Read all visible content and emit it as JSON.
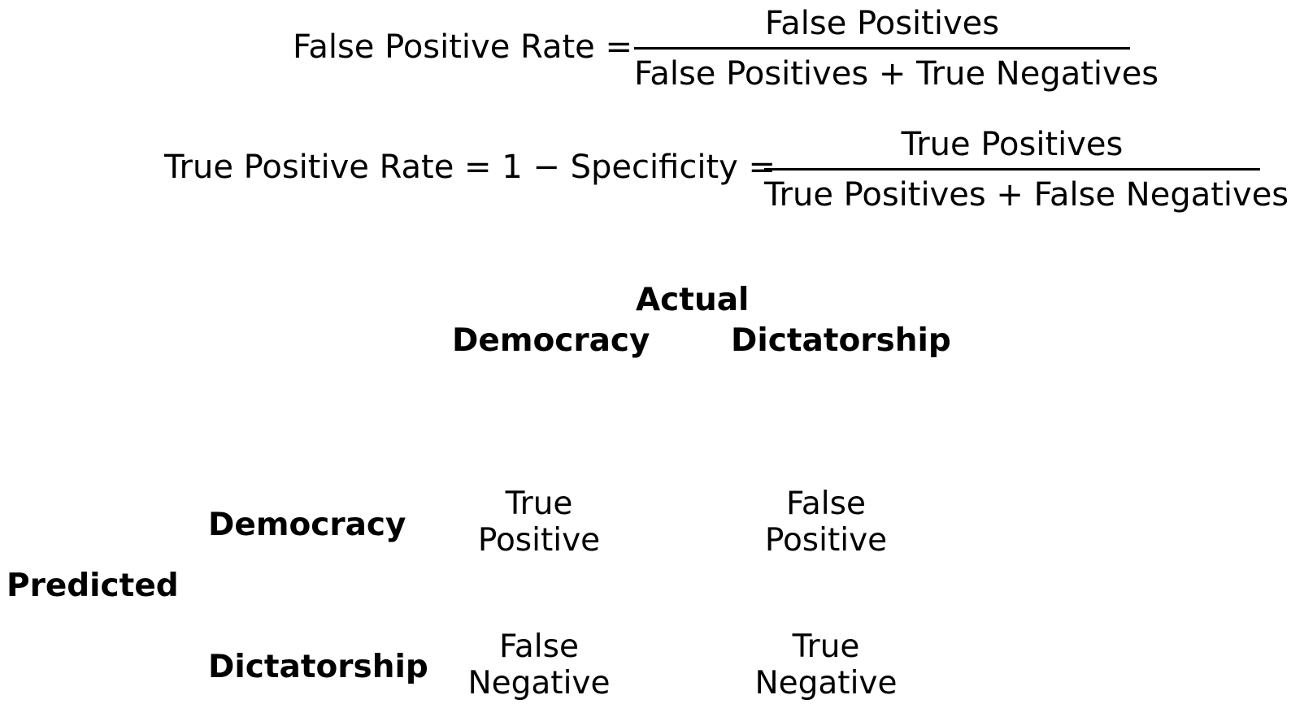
{
  "formulas": {
    "fpr": {
      "lhs": "False Positive Rate =",
      "numerator": "False Positives",
      "denominator": "False Positives + True Negatives"
    },
    "tpr": {
      "lhs": "True Positive Rate = 1 − Specificity =",
      "numerator": "True Positives",
      "denominator": "True Positives + False Negatives"
    }
  },
  "matrix": {
    "actual_label": "Actual",
    "predicted_label": "Predicted",
    "columns": [
      "Democracy",
      "Dictatorship"
    ],
    "rows": [
      "Democracy",
      "Dictatorship"
    ],
    "cells": [
      [
        {
          "line1": "True",
          "line2": "Positive"
        },
        {
          "line1": "False",
          "line2": "Positive"
        }
      ],
      [
        {
          "line1": "False",
          "line2": "Negative"
        },
        {
          "line1": "True",
          "line2": "Negative"
        }
      ]
    ]
  }
}
